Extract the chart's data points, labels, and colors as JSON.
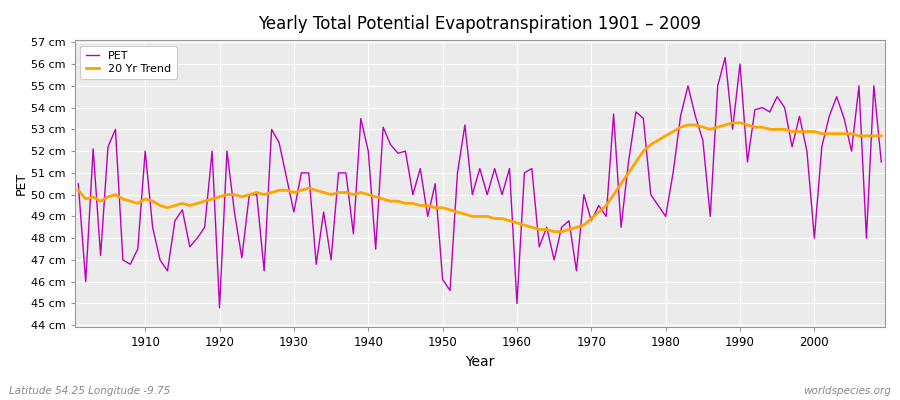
{
  "title": "Yearly Total Potential Evapotranspiration 1901 – 2009",
  "xlabel": "Year",
  "ylabel": "PET",
  "subtitle_left": "Latitude 54.25 Longitude -9.75",
  "subtitle_right": "worldspecies.org",
  "pet_color": "#bb00bb",
  "trend_color": "#ffa500",
  "background_color": "#ffffff",
  "plot_bg_color": "#ebebeb",
  "grid_color": "#ffffff",
  "ylim": [
    44,
    57
  ],
  "yticks": [
    44,
    45,
    46,
    47,
    48,
    49,
    50,
    51,
    52,
    53,
    54,
    55,
    56,
    57
  ],
  "years": [
    1901,
    1902,
    1903,
    1904,
    1905,
    1906,
    1907,
    1908,
    1909,
    1910,
    1911,
    1912,
    1913,
    1914,
    1915,
    1916,
    1917,
    1918,
    1919,
    1920,
    1921,
    1922,
    1923,
    1924,
    1925,
    1926,
    1927,
    1928,
    1929,
    1930,
    1931,
    1932,
    1933,
    1934,
    1935,
    1936,
    1937,
    1938,
    1939,
    1940,
    1941,
    1942,
    1943,
    1944,
    1945,
    1946,
    1947,
    1948,
    1949,
    1950,
    1951,
    1952,
    1953,
    1954,
    1955,
    1956,
    1957,
    1958,
    1959,
    1960,
    1961,
    1962,
    1963,
    1964,
    1965,
    1966,
    1967,
    1968,
    1969,
    1970,
    1971,
    1972,
    1973,
    1974,
    1975,
    1976,
    1977,
    1978,
    1979,
    1980,
    1981,
    1982,
    1983,
    1984,
    1985,
    1986,
    1987,
    1988,
    1989,
    1990,
    1991,
    1992,
    1993,
    1994,
    1995,
    1996,
    1997,
    1998,
    1999,
    2000,
    2001,
    2002,
    2003,
    2004,
    2005,
    2006,
    2007,
    2008,
    2009
  ],
  "pet_values": [
    50.5,
    46.0,
    52.1,
    47.2,
    52.2,
    53.0,
    47.0,
    46.8,
    47.5,
    52.0,
    48.5,
    47.0,
    46.5,
    48.8,
    49.3,
    47.6,
    48.0,
    48.5,
    52.0,
    44.8,
    52.0,
    49.2,
    47.1,
    50.0,
    50.0,
    46.5,
    53.0,
    52.4,
    50.8,
    49.2,
    51.0,
    51.0,
    46.8,
    49.2,
    47.0,
    51.0,
    51.0,
    48.2,
    53.5,
    52.0,
    47.5,
    53.1,
    52.3,
    51.9,
    52.0,
    50.0,
    51.2,
    49.0,
    50.5,
    46.1,
    45.6,
    51.0,
    53.2,
    50.0,
    51.2,
    50.0,
    51.2,
    50.0,
    51.2,
    45.0,
    51.0,
    51.2,
    47.6,
    48.5,
    47.0,
    48.5,
    48.8,
    46.5,
    50.0,
    48.8,
    49.5,
    49.0,
    53.7,
    48.5,
    51.5,
    53.8,
    53.5,
    50.0,
    49.5,
    49.0,
    51.0,
    53.6,
    55.0,
    53.6,
    52.5,
    49.0,
    55.0,
    56.3,
    53.0,
    56.0,
    51.5,
    53.9,
    54.0,
    53.8,
    54.5,
    54.0,
    52.2,
    53.6,
    52.0,
    48.0,
    52.2,
    53.6,
    54.5,
    53.5,
    52.0,
    55.0,
    48.0,
    55.0,
    51.5
  ],
  "trend_years": [
    1901,
    1902,
    1903,
    1904,
    1905,
    1906,
    1907,
    1908,
    1909,
    1910,
    1911,
    1912,
    1913,
    1914,
    1915,
    1916,
    1917,
    1918,
    1919,
    1920,
    1921,
    1922,
    1923,
    1924,
    1925,
    1926,
    1927,
    1928,
    1929,
    1930,
    1931,
    1932,
    1933,
    1934,
    1935,
    1936,
    1937,
    1938,
    1939,
    1940,
    1941,
    1942,
    1943,
    1944,
    1945,
    1946,
    1947,
    1948,
    1949,
    1950,
    1951,
    1952,
    1953,
    1954,
    1955,
    1956,
    1957,
    1958,
    1959,
    1960,
    1961,
    1962,
    1963,
    1964,
    1965,
    1966,
    1967,
    1968,
    1969,
    1970,
    1971,
    1972,
    1973,
    1974,
    1975,
    1976,
    1977,
    1978,
    1979,
    1980,
    1981,
    1982,
    1983,
    1984,
    1985,
    1986,
    1987,
    1988,
    1989,
    1990,
    1991,
    1992,
    1993,
    1994,
    1995,
    1996,
    1997,
    1998,
    1999,
    2000,
    2001,
    2002,
    2003,
    2004,
    2005,
    2006,
    2007,
    2008,
    2009
  ],
  "trend_values": [
    50.2,
    49.8,
    49.9,
    49.7,
    49.9,
    50.0,
    49.8,
    49.7,
    49.6,
    49.8,
    49.7,
    49.5,
    49.4,
    49.5,
    49.6,
    49.5,
    49.6,
    49.7,
    49.8,
    49.9,
    50.0,
    50.0,
    49.9,
    50.0,
    50.1,
    50.0,
    50.1,
    50.2,
    50.2,
    50.1,
    50.2,
    50.3,
    50.2,
    50.1,
    50.0,
    50.1,
    50.1,
    50.0,
    50.1,
    50.0,
    49.9,
    49.8,
    49.7,
    49.7,
    49.6,
    49.6,
    49.5,
    49.5,
    49.4,
    49.4,
    49.3,
    49.2,
    49.1,
    49.0,
    49.0,
    49.0,
    48.9,
    48.9,
    48.8,
    48.7,
    48.6,
    48.5,
    48.4,
    48.4,
    48.3,
    48.3,
    48.4,
    48.5,
    48.6,
    48.9,
    49.2,
    49.5,
    50.0,
    50.5,
    51.0,
    51.5,
    52.0,
    52.3,
    52.5,
    52.7,
    52.9,
    53.1,
    53.2,
    53.2,
    53.1,
    53.0,
    53.1,
    53.2,
    53.3,
    53.3,
    53.2,
    53.1,
    53.1,
    53.0,
    53.0,
    53.0,
    52.9,
    52.9,
    52.9,
    52.9,
    52.8,
    52.8,
    52.8,
    52.8,
    52.8,
    52.7,
    52.7,
    52.7,
    52.7
  ]
}
